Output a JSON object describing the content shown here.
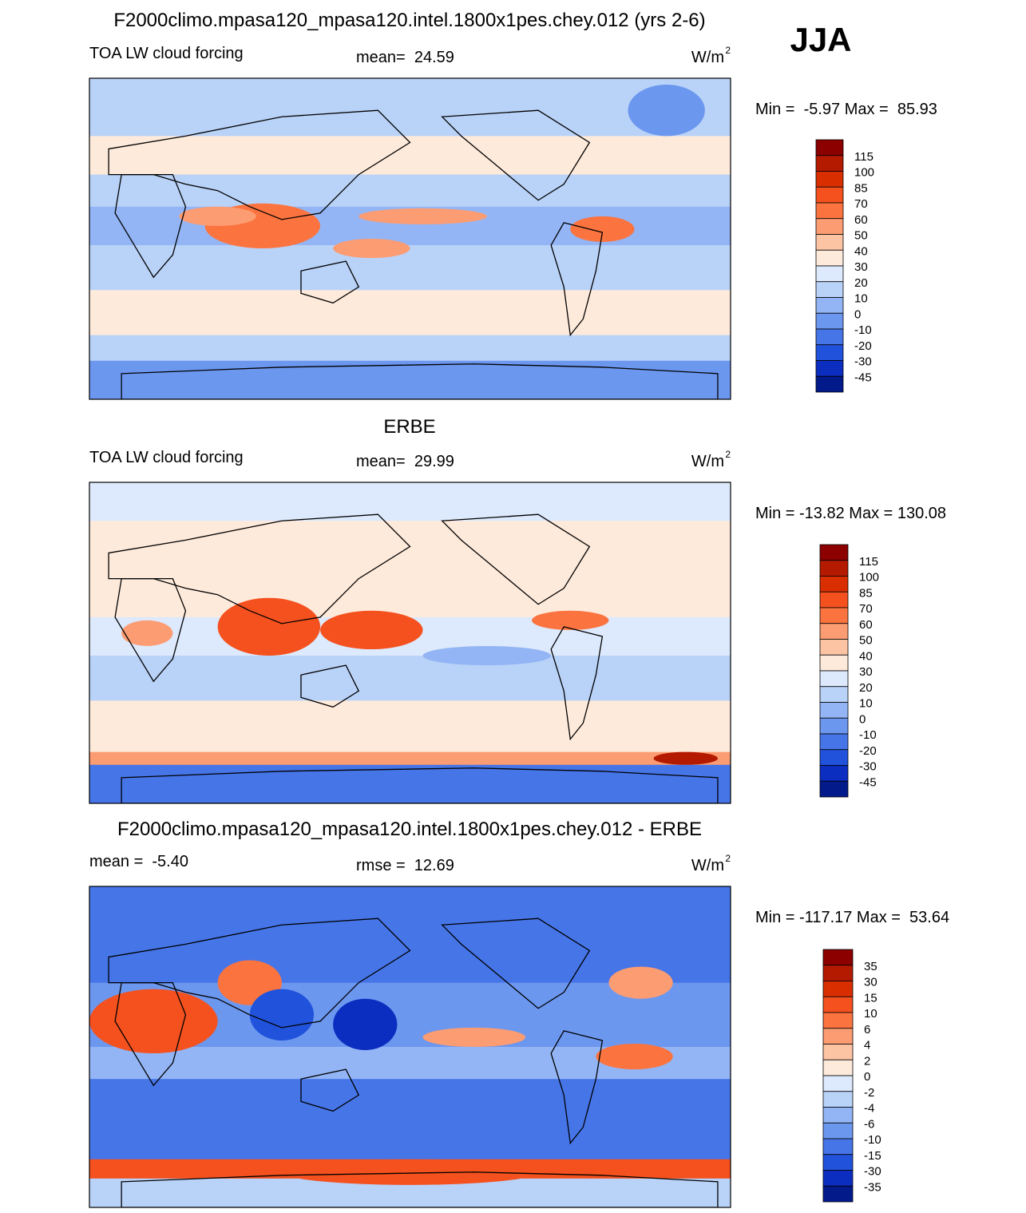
{
  "header": {
    "season": "JJA"
  },
  "panels": [
    {
      "title": "F2000climo.mpasa120_mpasa120.intel.1800x1pes.chey.012 (yrs 2-6)",
      "left_label": "TOA LW cloud forcing",
      "center_label": "mean=  24.59",
      "units": "W/m",
      "units_sup": "2",
      "range": "Min =  -5.97 Max =  85.93",
      "colorbar": {
        "labels": [
          "115",
          "100",
          "85",
          "70",
          "60",
          "50",
          "40",
          "30",
          "20",
          "10",
          "0",
          "-10",
          "-20",
          "-30",
          "-45"
        ],
        "colors": [
          "#8c0000",
          "#b41a00",
          "#d92f00",
          "#f4511e",
          "#fb7440",
          "#fc9c72",
          "#fdc4a4",
          "#feeadb",
          "#dde9fc",
          "#b9d2f8",
          "#93b5f5",
          "#6c97ef",
          "#4675e8",
          "#2152db",
          "#0b2ec0",
          "#021a8a"
        ]
      }
    },
    {
      "title": "ERBE",
      "left_label": "TOA LW cloud forcing",
      "center_label": "mean=  29.99",
      "units": "W/m",
      "units_sup": "2",
      "range": "Min = -13.82 Max = 130.08",
      "colorbar": {
        "labels": [
          "115",
          "100",
          "85",
          "70",
          "60",
          "50",
          "40",
          "30",
          "20",
          "10",
          "0",
          "-10",
          "-20",
          "-30",
          "-45"
        ],
        "colors": [
          "#8c0000",
          "#b41a00",
          "#d92f00",
          "#f4511e",
          "#fb7440",
          "#fc9c72",
          "#fdc4a4",
          "#feeadb",
          "#dde9fc",
          "#b9d2f8",
          "#93b5f5",
          "#6c97ef",
          "#4675e8",
          "#2152db",
          "#0b2ec0",
          "#021a8a"
        ]
      }
    },
    {
      "title": "F2000climo.mpasa120_mpasa120.intel.1800x1pes.chey.012 - ERBE",
      "left_label": "mean =  -5.40",
      "center_label": "rmse =  12.69",
      "units": "W/m",
      "units_sup": "2",
      "range": "Min = -117.17 Max =  53.64",
      "colorbar": {
        "labels": [
          "35",
          "30",
          "15",
          "10",
          "6",
          "4",
          "2",
          "0",
          "-2",
          "-4",
          "-6",
          "-10",
          "-15",
          "-30",
          "-35"
        ],
        "colors": [
          "#8c0000",
          "#b41a00",
          "#d92f00",
          "#f4511e",
          "#fb7440",
          "#fc9c72",
          "#fdc4a4",
          "#feeadb",
          "#dde9fc",
          "#b9d2f8",
          "#93b5f5",
          "#6c97ef",
          "#4675e8",
          "#2152db",
          "#0b2ec0",
          "#021a8a"
        ]
      }
    }
  ]
}
